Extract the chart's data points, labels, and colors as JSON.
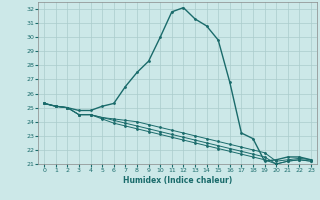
{
  "xlabel": "Humidex (Indice chaleur)",
  "ylabel": "",
  "bg_color": "#cce8e8",
  "grid_color": "#aacccc",
  "line_color": "#1a6b6b",
  "xlim": [
    -0.5,
    23.5
  ],
  "ylim": [
    21,
    32.5
  ],
  "yticks": [
    21,
    22,
    23,
    24,
    25,
    26,
    27,
    28,
    29,
    30,
    31,
    32
  ],
  "xticks": [
    0,
    1,
    2,
    3,
    4,
    5,
    6,
    7,
    8,
    9,
    10,
    11,
    12,
    13,
    14,
    15,
    16,
    17,
    18,
    19,
    20,
    21,
    22,
    23
  ],
  "curves": [
    {
      "x": [
        0,
        1,
        2,
        3,
        4,
        5,
        6,
        7,
        8,
        9,
        10,
        11,
        12,
        13,
        14,
        15,
        16,
        17,
        18,
        19,
        20,
        21,
        22,
        23
      ],
      "y": [
        25.3,
        25.1,
        25.0,
        24.8,
        24.8,
        25.1,
        25.3,
        26.5,
        27.5,
        28.3,
        30.0,
        31.8,
        32.1,
        31.3,
        30.8,
        29.8,
        26.8,
        23.2,
        22.8,
        21.2,
        21.3,
        21.5,
        21.5,
        21.3
      ]
    },
    {
      "x": [
        0,
        1,
        2,
        3,
        4,
        5,
        6,
        7,
        8,
        9,
        10,
        11,
        12,
        13,
        14,
        15,
        16,
        17,
        18,
        19,
        20,
        21,
        22,
        23
      ],
      "y": [
        25.3,
        25.1,
        25.0,
        24.5,
        24.5,
        24.3,
        24.2,
        24.1,
        24.0,
        23.8,
        23.6,
        23.4,
        23.2,
        23.0,
        22.8,
        22.6,
        22.4,
        22.2,
        22.0,
        21.8,
        21.2,
        21.3,
        21.4,
        21.3
      ]
    },
    {
      "x": [
        0,
        1,
        2,
        3,
        4,
        5,
        6,
        7,
        8,
        9,
        10,
        11,
        12,
        13,
        14,
        15,
        16,
        17,
        18,
        19,
        20,
        21,
        22,
        23
      ],
      "y": [
        25.3,
        25.1,
        25.0,
        24.5,
        24.5,
        24.3,
        24.1,
        23.9,
        23.7,
        23.5,
        23.3,
        23.1,
        22.9,
        22.7,
        22.5,
        22.3,
        22.1,
        21.9,
        21.7,
        21.5,
        21.0,
        21.2,
        21.3,
        21.2
      ]
    },
    {
      "x": [
        0,
        1,
        2,
        3,
        4,
        5,
        6,
        7,
        8,
        9,
        10,
        11,
        12,
        13,
        14,
        15,
        16,
        17,
        18,
        19,
        20,
        21,
        22,
        23
      ],
      "y": [
        25.3,
        25.1,
        25.0,
        24.5,
        24.5,
        24.2,
        23.9,
        23.7,
        23.5,
        23.3,
        23.1,
        22.9,
        22.7,
        22.5,
        22.3,
        22.1,
        21.9,
        21.7,
        21.5,
        21.3,
        21.0,
        21.2,
        21.3,
        21.2
      ]
    }
  ]
}
